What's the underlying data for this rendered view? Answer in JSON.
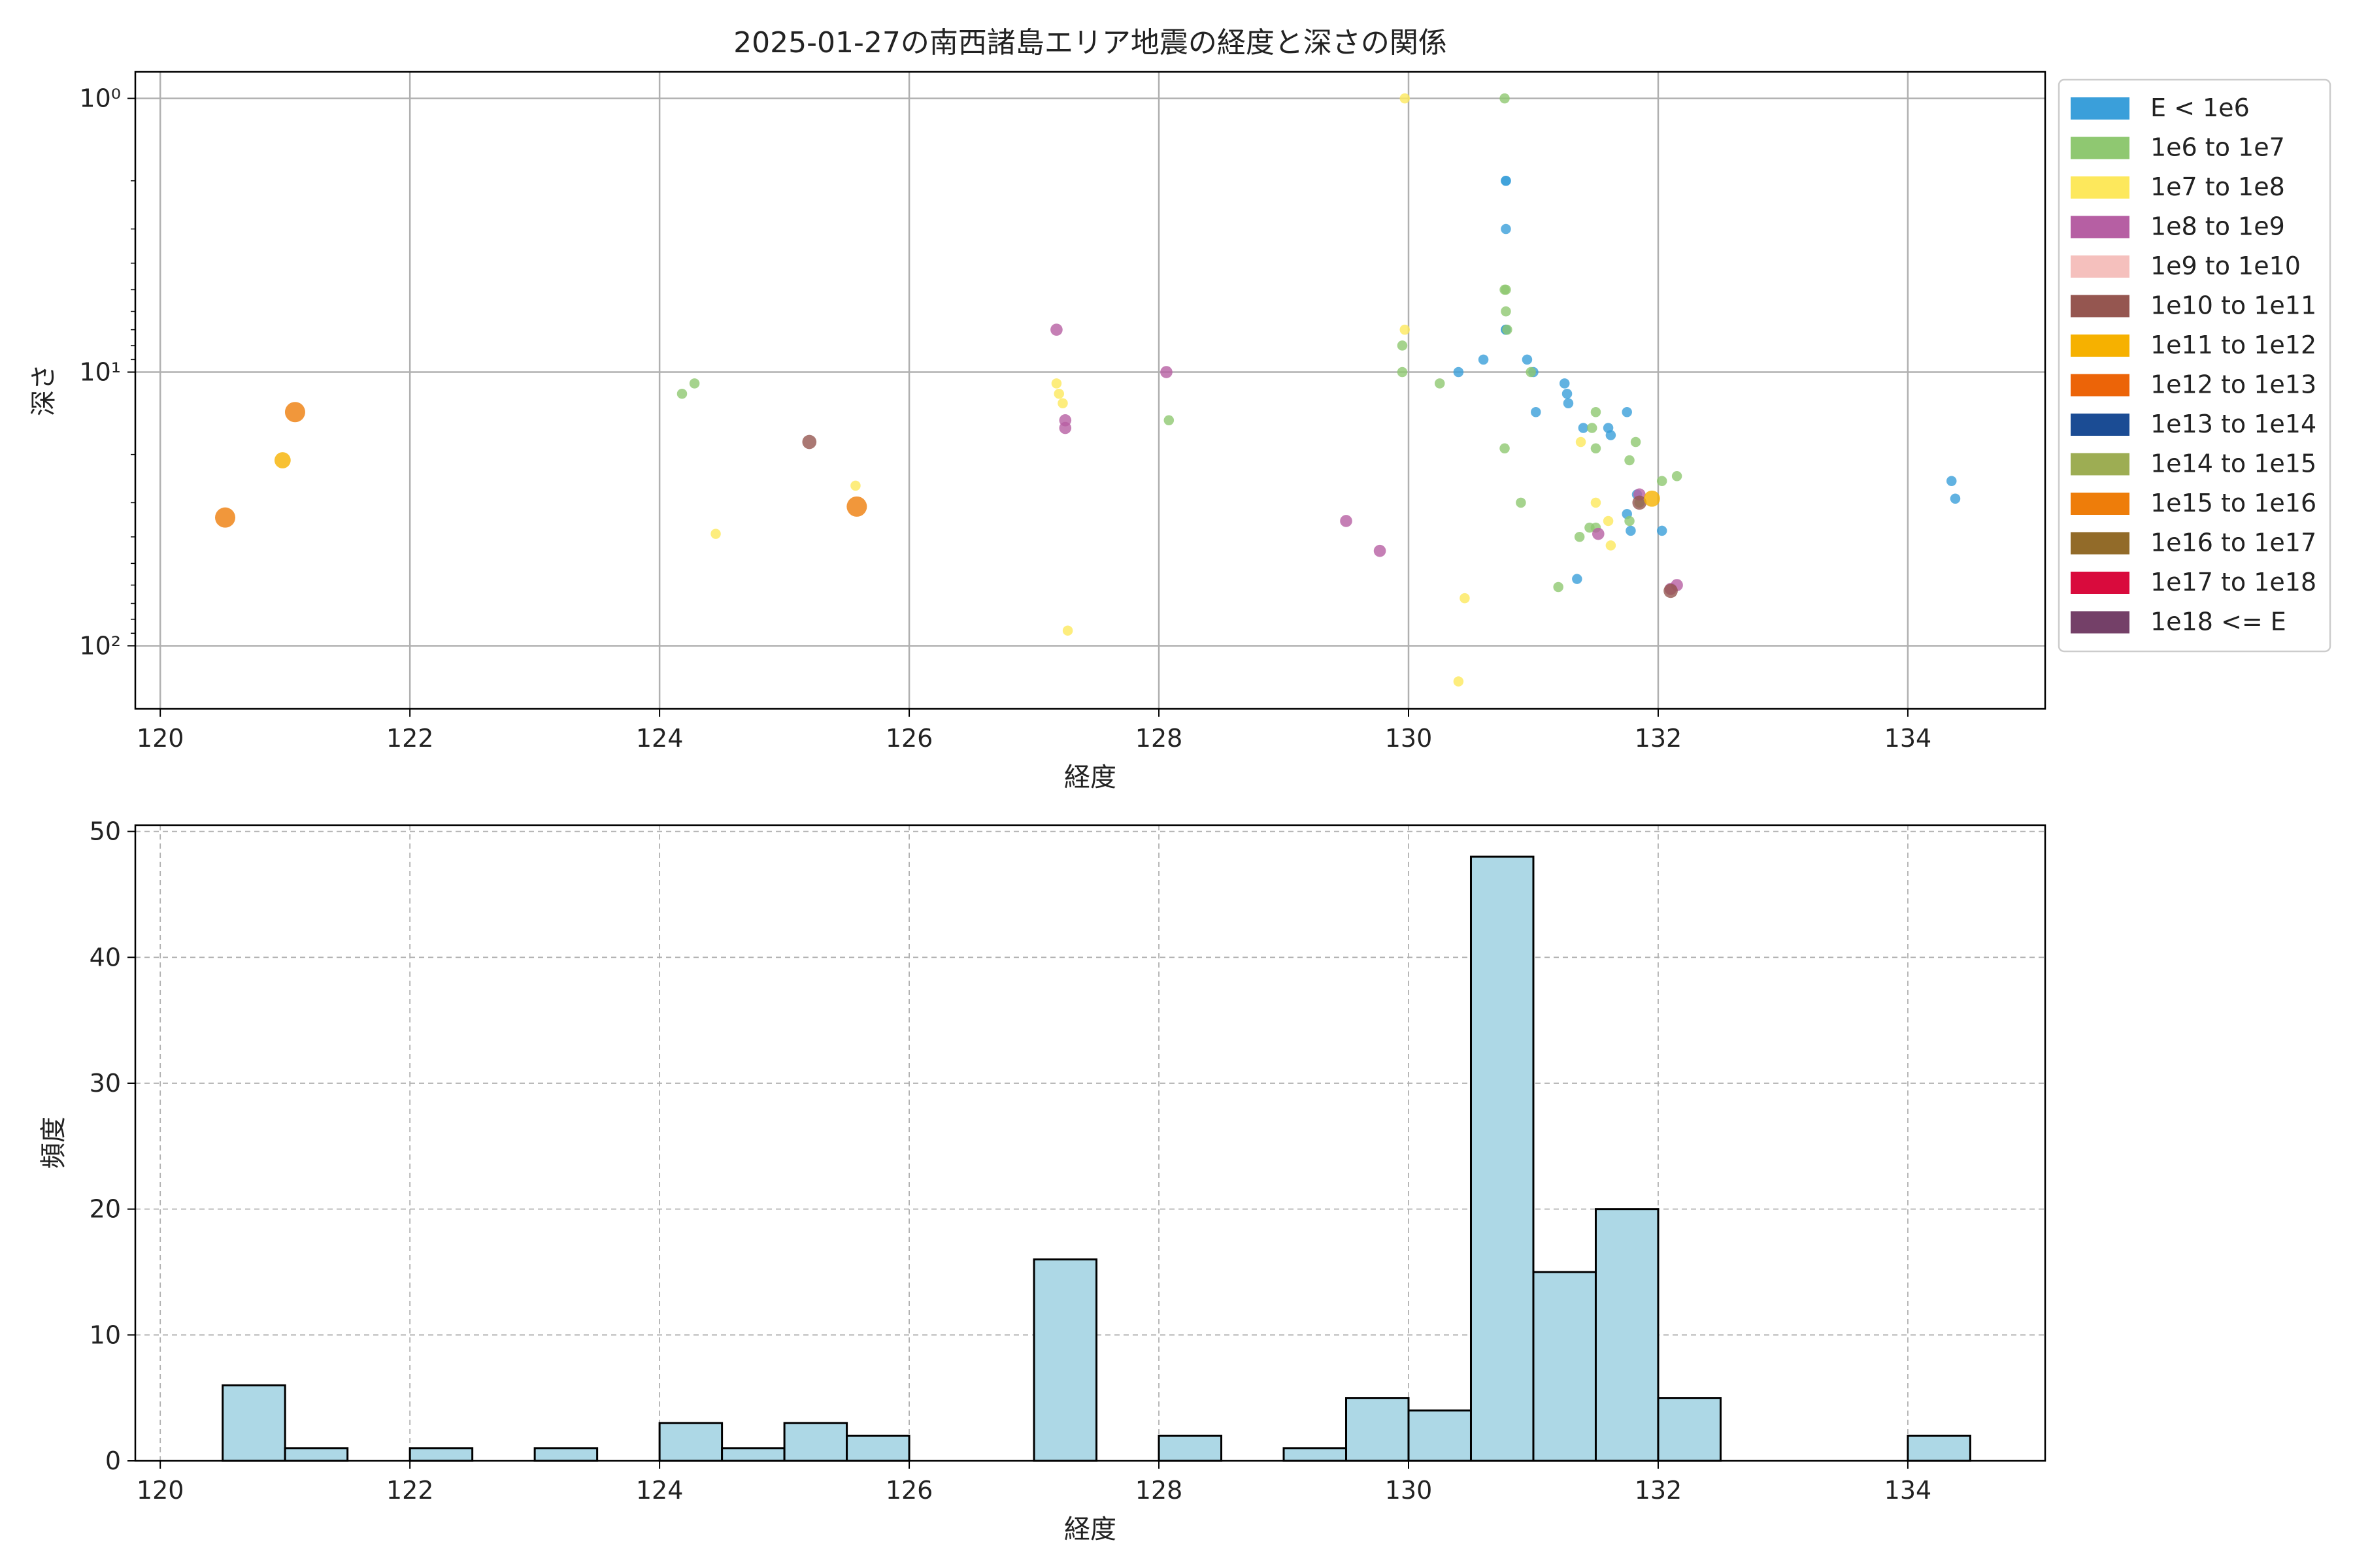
{
  "chart_data": [
    {
      "type": "scatter",
      "title": "2025-01-27の南西諸島エリア地震の経度と深さの関係",
      "xlabel": "経度",
      "ylabel": "深さ",
      "xlim": [
        119.8,
        135.1
      ],
      "ylim": [
        170,
        0.8
      ],
      "y_scale": "log",
      "y_inverted": true,
      "grid": true,
      "legend_placement": "outside-right",
      "x_ticks": [
        120,
        122,
        124,
        126,
        128,
        130,
        132,
        134
      ],
      "y_ticks": [
        {
          "value": 1,
          "label": "10⁰"
        },
        {
          "value": 10,
          "label": "10¹"
        },
        {
          "value": 100,
          "label": "10²"
        }
      ],
      "legend": [
        {
          "label": "E < 1e6",
          "color": "#3a9fda"
        },
        {
          "label": "1e6 to 1e7",
          "color": "#8fc871"
        },
        {
          "label": "1e7 to 1e8",
          "color": "#fde85c"
        },
        {
          "label": "1e8 to 1e9",
          "color": "#b65fa3"
        },
        {
          "label": "1e9 to 1e10",
          "color": "#f5c0bd"
        },
        {
          "label": "1e10 to 1e11",
          "color": "#955650"
        },
        {
          "label": "1e11 to 1e12",
          "color": "#f6b100"
        },
        {
          "label": "1e12 to 1e13",
          "color": "#ec6408"
        },
        {
          "label": "1e13 to 1e14",
          "color": "#1b4c94"
        },
        {
          "label": "1e14 to 1e15",
          "color": "#9dad53"
        },
        {
          "label": "1e15 to 1e16",
          "color": "#ee7d0a"
        },
        {
          "label": "1e16 to 1e17",
          "color": "#926b29"
        },
        {
          "label": "1e17 to 1e18",
          "color": "#d90b3d"
        },
        {
          "label": "1e18 <= E",
          "color": "#744068"
        }
      ],
      "series": [
        {
          "name": "E < 1e6",
          "color": "#3a9fda",
          "size": 5,
          "points": [
            [
              130.78,
              2
            ],
            [
              130.78,
              2
            ],
            [
              130.78,
              3
            ],
            [
              130.78,
              7
            ],
            [
              130.78,
              7
            ],
            [
              130.4,
              10
            ],
            [
              130.6,
              9
            ],
            [
              130.95,
              9
            ],
            [
              131.0,
              10
            ],
            [
              131.25,
              11
            ],
            [
              131.27,
              12
            ],
            [
              131.28,
              13
            ],
            [
              131.02,
              14
            ],
            [
              131.75,
              14
            ],
            [
              131.6,
              16
            ],
            [
              131.62,
              17
            ],
            [
              132.03,
              38
            ],
            [
              131.78,
              38
            ],
            [
              131.75,
              33
            ],
            [
              131.83,
              28
            ],
            [
              131.35,
              57
            ],
            [
              134.35,
              25
            ],
            [
              134.38,
              29
            ],
            [
              131.4,
              16
            ]
          ]
        },
        {
          "name": "1e6 to 1e7",
          "color": "#8fc871",
          "size": 5,
          "points": [
            [
              130.77,
              1
            ],
            [
              130.77,
              5
            ],
            [
              130.78,
              5
            ],
            [
              130.78,
              6
            ],
            [
              130.79,
              7
            ],
            [
              129.95,
              8
            ],
            [
              129.95,
              10
            ],
            [
              130.25,
              11
            ],
            [
              124.18,
              12
            ],
            [
              124.28,
              11
            ],
            [
              128.08,
              15
            ],
            [
              130.98,
              10
            ],
            [
              131.5,
              14
            ],
            [
              131.47,
              16
            ],
            [
              131.82,
              18
            ],
            [
              131.5,
              19
            ],
            [
              130.77,
              19
            ],
            [
              131.77,
              21
            ],
            [
              132.03,
              25
            ],
            [
              132.15,
              24
            ],
            [
              130.9,
              30
            ],
            [
              131.45,
              37
            ],
            [
              131.5,
              37
            ],
            [
              131.37,
              40
            ],
            [
              131.77,
              35
            ],
            [
              131.2,
              61
            ],
            [
              131.85,
              30
            ]
          ]
        },
        {
          "name": "1e7 to 1e8",
          "color": "#fde85c",
          "size": 5,
          "points": [
            [
              129.97,
              1
            ],
            [
              129.97,
              7
            ],
            [
              127.18,
              11
            ],
            [
              127.2,
              12
            ],
            [
              127.23,
              13
            ],
            [
              125.57,
              26
            ],
            [
              124.45,
              39
            ],
            [
              127.27,
              88
            ],
            [
              130.45,
              67
            ],
            [
              130.4,
              135
            ],
            [
              131.38,
              18
            ],
            [
              131.5,
              30
            ],
            [
              131.6,
              35
            ],
            [
              131.62,
              43
            ]
          ]
        },
        {
          "name": "1e8 to 1e9",
          "color": "#b65fa3",
          "size": 6,
          "points": [
            [
              127.18,
              7
            ],
            [
              128.06,
              10
            ],
            [
              127.25,
              15
            ],
            [
              127.25,
              16
            ],
            [
              129.5,
              35
            ],
            [
              129.77,
              45
            ],
            [
              132.1,
              62
            ],
            [
              132.15,
              60
            ],
            [
              131.52,
              39
            ],
            [
              131.85,
              28
            ]
          ]
        },
        {
          "name": "1e10 to 1e11",
          "color": "#955650",
          "size": 7,
          "points": [
            [
              125.2,
              18
            ],
            [
              132.1,
              63
            ],
            [
              131.85,
              30
            ]
          ]
        },
        {
          "name": "1e11 to 1e12",
          "color": "#f6b100",
          "size": 8,
          "points": [
            [
              120.98,
              21
            ],
            [
              131.95,
              29
            ]
          ]
        },
        {
          "name": "1e15 to 1e16",
          "color": "#ee7d0a",
          "size": 10,
          "points": [
            [
              121.08,
              14
            ],
            [
              125.58,
              31
            ],
            [
              120.52,
              34
            ]
          ]
        }
      ]
    },
    {
      "type": "bar",
      "subtype": "histogram",
      "title": "",
      "xlabel": "経度",
      "ylabel": "頻度",
      "xlim": [
        119.8,
        135.1
      ],
      "ylim": [
        0,
        50.5
      ],
      "grid": true,
      "bar_color": "#add8e6",
      "edge_color": "#000000",
      "x_ticks": [
        120,
        122,
        124,
        126,
        128,
        130,
        132,
        134
      ],
      "y_ticks": [
        0,
        10,
        20,
        30,
        40,
        50
      ],
      "bins": [
        {
          "start": 120.5,
          "end": 121.0,
          "count": 6
        },
        {
          "start": 121.0,
          "end": 121.5,
          "count": 1
        },
        {
          "start": 122.0,
          "end": 122.5,
          "count": 1
        },
        {
          "start": 123.0,
          "end": 123.5,
          "count": 1
        },
        {
          "start": 124.0,
          "end": 124.5,
          "count": 3
        },
        {
          "start": 124.5,
          "end": 125.0,
          "count": 1
        },
        {
          "start": 125.0,
          "end": 125.5,
          "count": 3
        },
        {
          "start": 125.5,
          "end": 126.0,
          "count": 2
        },
        {
          "start": 127.0,
          "end": 127.5,
          "count": 16
        },
        {
          "start": 128.0,
          "end": 128.5,
          "count": 2
        },
        {
          "start": 129.0,
          "end": 129.5,
          "count": 1
        },
        {
          "start": 129.5,
          "end": 130.0,
          "count": 5
        },
        {
          "start": 130.0,
          "end": 130.5,
          "count": 4
        },
        {
          "start": 130.5,
          "end": 131.0,
          "count": 48
        },
        {
          "start": 131.0,
          "end": 131.5,
          "count": 15
        },
        {
          "start": 131.5,
          "end": 132.0,
          "count": 20
        },
        {
          "start": 132.0,
          "end": 132.5,
          "count": 5
        },
        {
          "start": 134.0,
          "end": 134.5,
          "count": 2
        }
      ]
    }
  ]
}
